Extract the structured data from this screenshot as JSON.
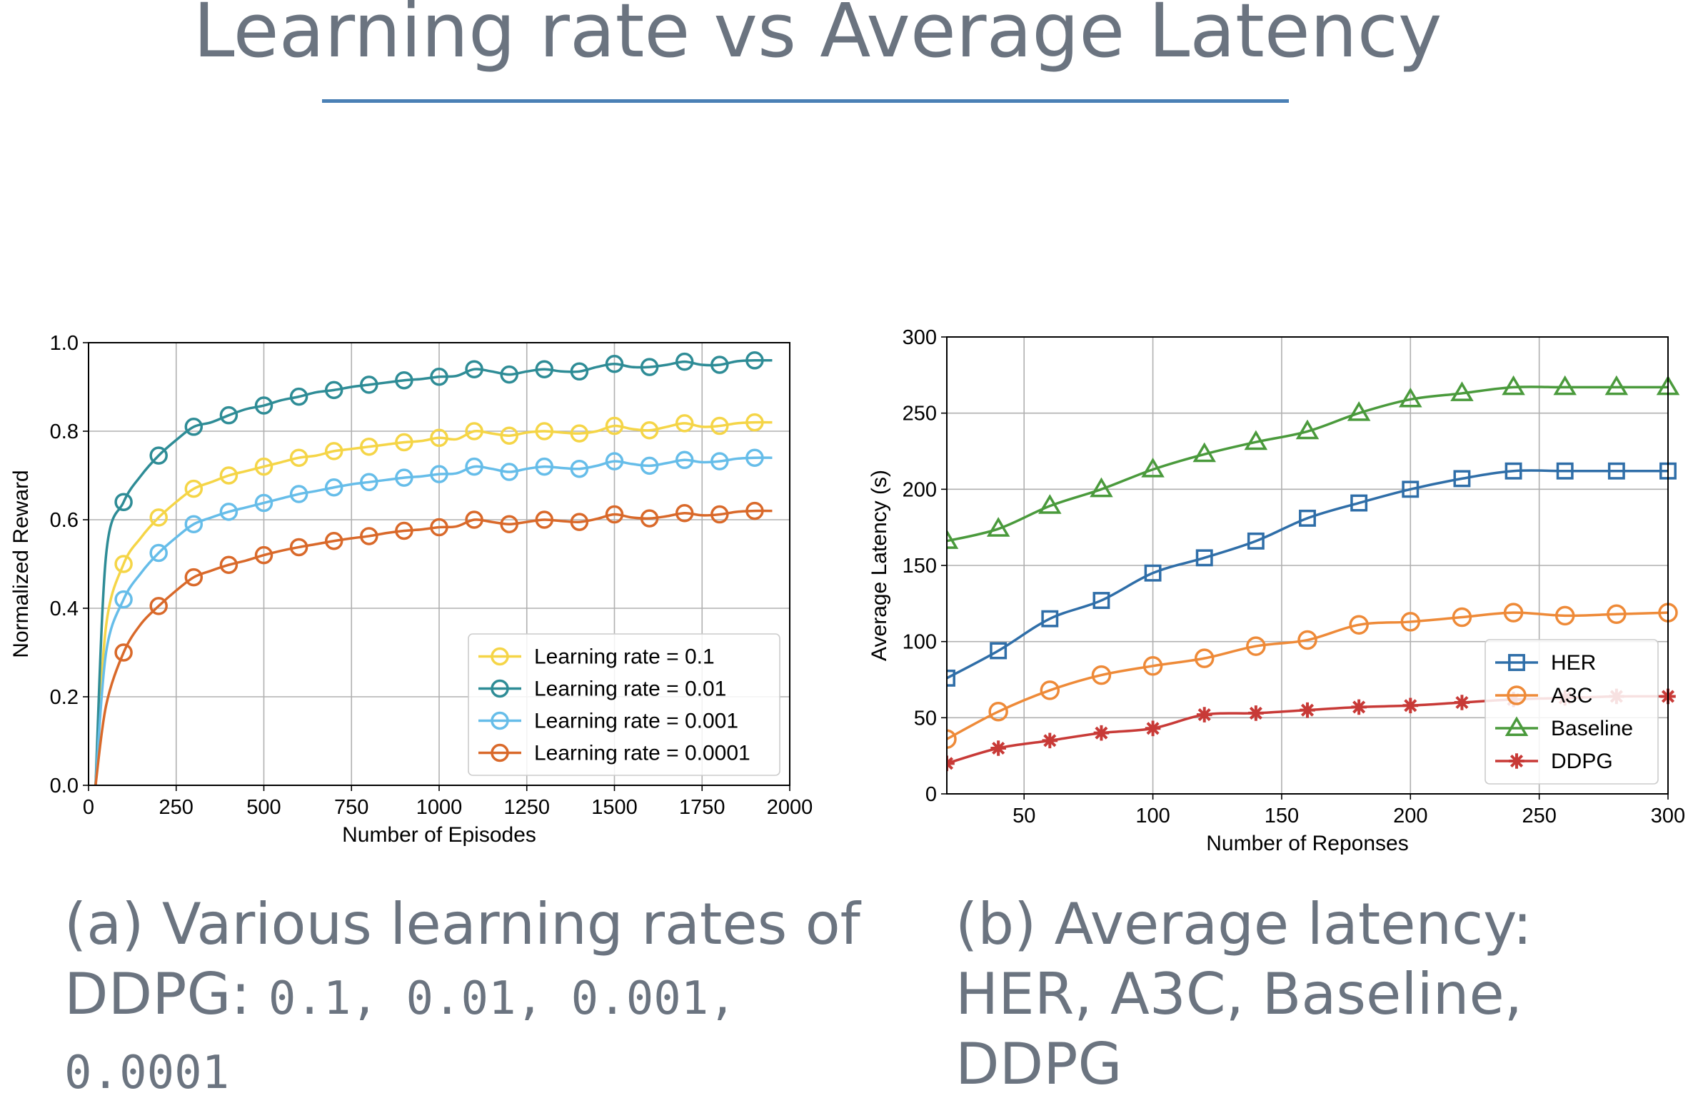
{
  "page": {
    "title": "Learning rate vs Average Latency",
    "accent_color": "#4a80b5",
    "text_color": "#6b7480"
  },
  "captions": {
    "a": {
      "text": "(a) Various learning rates of DDPG: ",
      "values": "0.1, 0.01, 0.001, 0.0001"
    },
    "b": {
      "text": "(b) Average latency: HER, A3C, Baseline, DDPG"
    }
  },
  "chart_data": [
    {
      "type": "line",
      "xlabel": "Number of Episodes",
      "ylabel": "Normalized Reward",
      "xlim": [
        0,
        2000
      ],
      "ylim": [
        0.0,
        1.0
      ],
      "xticks": [
        0,
        250,
        500,
        750,
        1000,
        1250,
        1500,
        1750,
        2000
      ],
      "yticks": [
        0.0,
        0.2,
        0.4,
        0.6,
        0.8,
        1.0
      ],
      "ytick_decimals": 1,
      "grid": true,
      "legend_position": "bottom-right",
      "marker_step": 100,
      "series": [
        {
          "name": "Learning rate = 0.1",
          "color": "#f5d547",
          "marker": "circle",
          "x": [
            20,
            50,
            100,
            150,
            200,
            250,
            300,
            350,
            400,
            450,
            500,
            550,
            600,
            650,
            700,
            750,
            800,
            850,
            900,
            950,
            1000,
            1050,
            1100,
            1150,
            1200,
            1250,
            1300,
            1350,
            1400,
            1450,
            1500,
            1550,
            1600,
            1650,
            1700,
            1750,
            1800,
            1850,
            1900,
            1950
          ],
          "y": [
            0.0,
            0.36,
            0.5,
            0.56,
            0.605,
            0.64,
            0.67,
            0.685,
            0.7,
            0.71,
            0.72,
            0.73,
            0.74,
            0.745,
            0.755,
            0.76,
            0.765,
            0.77,
            0.775,
            0.778,
            0.785,
            0.782,
            0.8,
            0.795,
            0.79,
            0.797,
            0.8,
            0.797,
            0.795,
            0.8,
            0.812,
            0.805,
            0.802,
            0.81,
            0.818,
            0.81,
            0.812,
            0.818,
            0.82,
            0.82
          ]
        },
        {
          "name": "Learning rate = 0.01",
          "color": "#2e8c96",
          "marker": "circle",
          "x": [
            20,
            50,
            100,
            150,
            200,
            250,
            300,
            350,
            400,
            450,
            500,
            550,
            600,
            650,
            700,
            750,
            800,
            850,
            900,
            950,
            1000,
            1050,
            1100,
            1150,
            1200,
            1250,
            1300,
            1350,
            1400,
            1450,
            1500,
            1550,
            1600,
            1650,
            1700,
            1750,
            1800,
            1850,
            1900,
            1950
          ],
          "y": [
            0.0,
            0.52,
            0.64,
            0.7,
            0.745,
            0.78,
            0.81,
            0.82,
            0.836,
            0.85,
            0.858,
            0.87,
            0.878,
            0.888,
            0.893,
            0.9,
            0.905,
            0.91,
            0.915,
            0.918,
            0.923,
            0.925,
            0.94,
            0.935,
            0.928,
            0.935,
            0.94,
            0.935,
            0.935,
            0.945,
            0.952,
            0.945,
            0.945,
            0.95,
            0.957,
            0.95,
            0.95,
            0.958,
            0.96,
            0.96
          ]
        },
        {
          "name": "Learning rate = 0.001",
          "color": "#66bde9",
          "marker": "circle",
          "x": [
            20,
            50,
            100,
            150,
            200,
            250,
            300,
            350,
            400,
            450,
            500,
            550,
            600,
            650,
            700,
            750,
            800,
            850,
            900,
            950,
            1000,
            1050,
            1100,
            1150,
            1200,
            1250,
            1300,
            1350,
            1400,
            1450,
            1500,
            1550,
            1600,
            1650,
            1700,
            1750,
            1800,
            1850,
            1900,
            1950
          ],
          "y": [
            0.0,
            0.3,
            0.42,
            0.48,
            0.525,
            0.56,
            0.59,
            0.605,
            0.618,
            0.628,
            0.638,
            0.648,
            0.658,
            0.665,
            0.673,
            0.68,
            0.685,
            0.69,
            0.695,
            0.698,
            0.703,
            0.705,
            0.72,
            0.715,
            0.708,
            0.715,
            0.72,
            0.717,
            0.715,
            0.722,
            0.732,
            0.726,
            0.722,
            0.728,
            0.735,
            0.73,
            0.732,
            0.738,
            0.74,
            0.74
          ]
        },
        {
          "name": "Learning rate = 0.0001",
          "color": "#d9692a",
          "marker": "circle",
          "x": [
            20,
            50,
            100,
            150,
            200,
            250,
            300,
            350,
            400,
            450,
            500,
            550,
            600,
            650,
            700,
            750,
            800,
            850,
            900,
            950,
            1000,
            1050,
            1100,
            1150,
            1200,
            1250,
            1300,
            1350,
            1400,
            1450,
            1500,
            1550,
            1600,
            1650,
            1700,
            1750,
            1800,
            1850,
            1900,
            1950
          ],
          "y": [
            0.0,
            0.18,
            0.3,
            0.365,
            0.405,
            0.44,
            0.47,
            0.485,
            0.498,
            0.508,
            0.52,
            0.53,
            0.538,
            0.545,
            0.552,
            0.558,
            0.563,
            0.57,
            0.575,
            0.578,
            0.583,
            0.585,
            0.6,
            0.595,
            0.59,
            0.595,
            0.6,
            0.597,
            0.595,
            0.602,
            0.612,
            0.605,
            0.603,
            0.608,
            0.615,
            0.61,
            0.612,
            0.618,
            0.62,
            0.62
          ]
        }
      ]
    },
    {
      "type": "line",
      "xlabel": "Number of Reponses",
      "ylabel": "Average Latency (s)",
      "xlim": [
        20,
        300
      ],
      "ylim": [
        0,
        300
      ],
      "xticks": [
        50,
        100,
        150,
        200,
        250,
        300
      ],
      "yticks": [
        0,
        50,
        100,
        150,
        200,
        250,
        300
      ],
      "ytick_decimals": 0,
      "grid": true,
      "legend_position": "bottom-right",
      "marker_step": 20,
      "series": [
        {
          "name": "HER",
          "color": "#2f6ea8",
          "marker": "square",
          "x": [
            20,
            40,
            60,
            80,
            100,
            120,
            140,
            160,
            180,
            200,
            220,
            240,
            260,
            280,
            300
          ],
          "y": [
            76,
            94,
            115,
            127,
            145,
            155,
            166,
            181,
            191,
            200,
            207,
            212,
            212,
            212,
            212
          ]
        },
        {
          "name": "A3C",
          "color": "#ee8a38",
          "marker": "circle",
          "x": [
            20,
            40,
            60,
            80,
            100,
            120,
            140,
            160,
            180,
            200,
            220,
            240,
            260,
            280,
            300
          ],
          "y": [
            36,
            54,
            68,
            78,
            84,
            89,
            97,
            101,
            111,
            113,
            116,
            119,
            117,
            118,
            119
          ]
        },
        {
          "name": "Baseline",
          "color": "#4a9a3c",
          "marker": "triangle",
          "x": [
            20,
            40,
            60,
            80,
            100,
            120,
            140,
            160,
            180,
            200,
            220,
            240,
            260,
            280,
            300
          ],
          "y": [
            166,
            174,
            189,
            200,
            213,
            223,
            231,
            238,
            250,
            259,
            263,
            267,
            267,
            267,
            267
          ]
        },
        {
          "name": "DDPG",
          "color": "#c83a37",
          "marker": "star",
          "x": [
            20,
            40,
            60,
            80,
            100,
            120,
            140,
            160,
            180,
            200,
            220,
            240,
            260,
            280,
            300
          ],
          "y": [
            20,
            30,
            35,
            40,
            43,
            52,
            53,
            55,
            57,
            58,
            60,
            62,
            63,
            64,
            64
          ]
        }
      ]
    }
  ]
}
